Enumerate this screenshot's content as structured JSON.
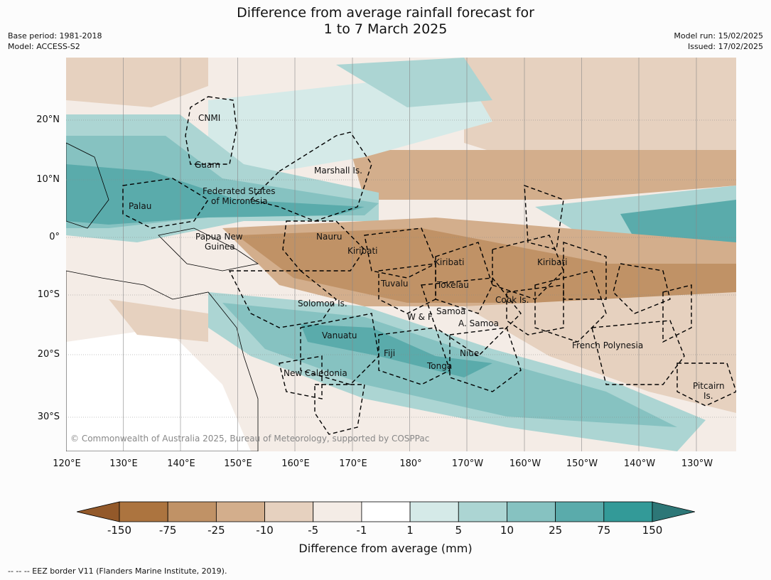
{
  "title_line1": "Difference from average rainfall forecast for",
  "title_line2": "1 to 7 March 2025",
  "base_period": "Base period: 1981-2018",
  "model": "Model: ACCESS-S2",
  "model_run": "Model run: 15/02/2025",
  "issued": "Issued: 17/02/2025",
  "lat_labels": [
    "20°N",
    "10°N",
    "0°",
    "10°S",
    "20°S",
    "30°S"
  ],
  "lon_labels": [
    "120°E",
    "130°E",
    "140°E",
    "150°E",
    "160°E",
    "170°E",
    "180°",
    "170°W",
    "160°W",
    "150°W",
    "140°W",
    "130°W"
  ],
  "regions": {
    "cnmi": "CNMI",
    "guam": "Guam",
    "marshall": "Marshall Is.",
    "fsm1": "Federated States",
    "fsm2": "of Micronesia",
    "palau": "Palau",
    "png1": "Papua New",
    "png2": "Guinea",
    "nauru": "Nauru",
    "kiribati_w": "Kiribati",
    "kiribati_c": "Kiribati",
    "kiribati_e": "Kiribati",
    "tuvalu": "Tuvalu",
    "tokelau": "Tokelau",
    "cook": "Cook Is.",
    "solomon": "Solomon Is.",
    "wf": "W & F",
    "samoa": "Samoa",
    "asamoa": "A. Samoa",
    "vanuatu": "Vanuatu",
    "fiji": "Fiji",
    "niue": "Niue",
    "tonga": "Tonga",
    "frenchpoly": "French Polynesia",
    "newcal": "New Caledonia",
    "pitcairn1": "Pitcairn",
    "pitcairn2": "Is."
  },
  "copyright": "© Commonwealth of Australia 2025, Bureau of Meteorology, supported by COSPPac",
  "colorbar": {
    "ticks": [
      "-150",
      "-75",
      "-25",
      "-10",
      "-5",
      "-1",
      "1",
      "5",
      "10",
      "25",
      "75",
      "150"
    ],
    "colors": [
      "#93592a",
      "#ac743f",
      "#c09266",
      "#d3ae8c",
      "#e6d1bf",
      "#f4ece6",
      "#ffffff",
      "#d5eae8",
      "#acd5d3",
      "#86c2c1",
      "#5aabab",
      "#339a98",
      "#2d7777"
    ],
    "title": "Difference from average (mm)"
  },
  "footer": "--  --  -- EEZ border V11 (Flanders Marine Institute, 2019)."
}
